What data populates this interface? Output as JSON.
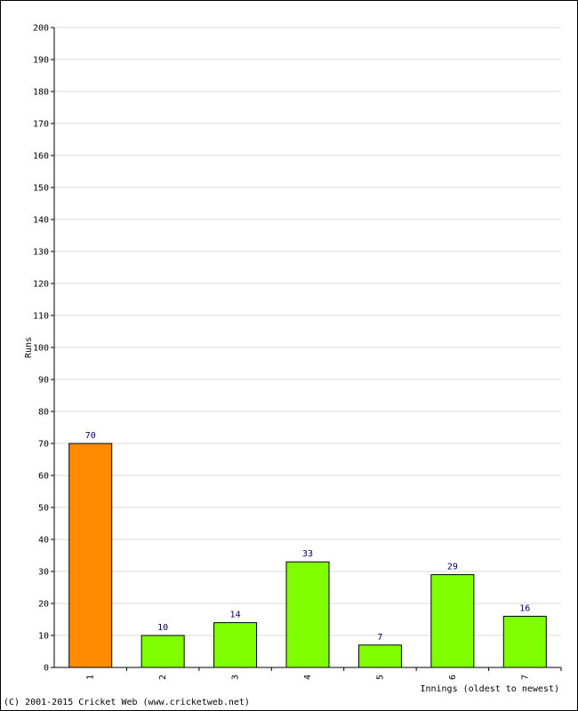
{
  "chart_data": {
    "type": "bar",
    "categories": [
      "1",
      "2",
      "3",
      "4",
      "5",
      "6",
      "7"
    ],
    "values": [
      70,
      10,
      14,
      33,
      7,
      29,
      16
    ],
    "bar_colors": [
      "#ff8c00",
      "#7fff00",
      "#7fff00",
      "#7fff00",
      "#7fff00",
      "#7fff00",
      "#7fff00"
    ],
    "title": "",
    "xlabel": "Innings (oldest to newest)",
    "ylabel": "Runs",
    "ylim": [
      0,
      200
    ],
    "yticks": [
      0,
      10,
      20,
      30,
      40,
      50,
      60,
      70,
      80,
      90,
      100,
      110,
      120,
      130,
      140,
      150,
      160,
      170,
      180,
      190,
      200
    ],
    "grid": true,
    "data_labels": true
  },
  "colors": {
    "highlight_bar": "#ff8c00",
    "bar": "#7fff00",
    "gridline": "#d8d8d8",
    "data_label": "#000066"
  },
  "footer": {
    "copyright": "(C) 2001-2015 Cricket Web (www.cricketweb.net)"
  }
}
